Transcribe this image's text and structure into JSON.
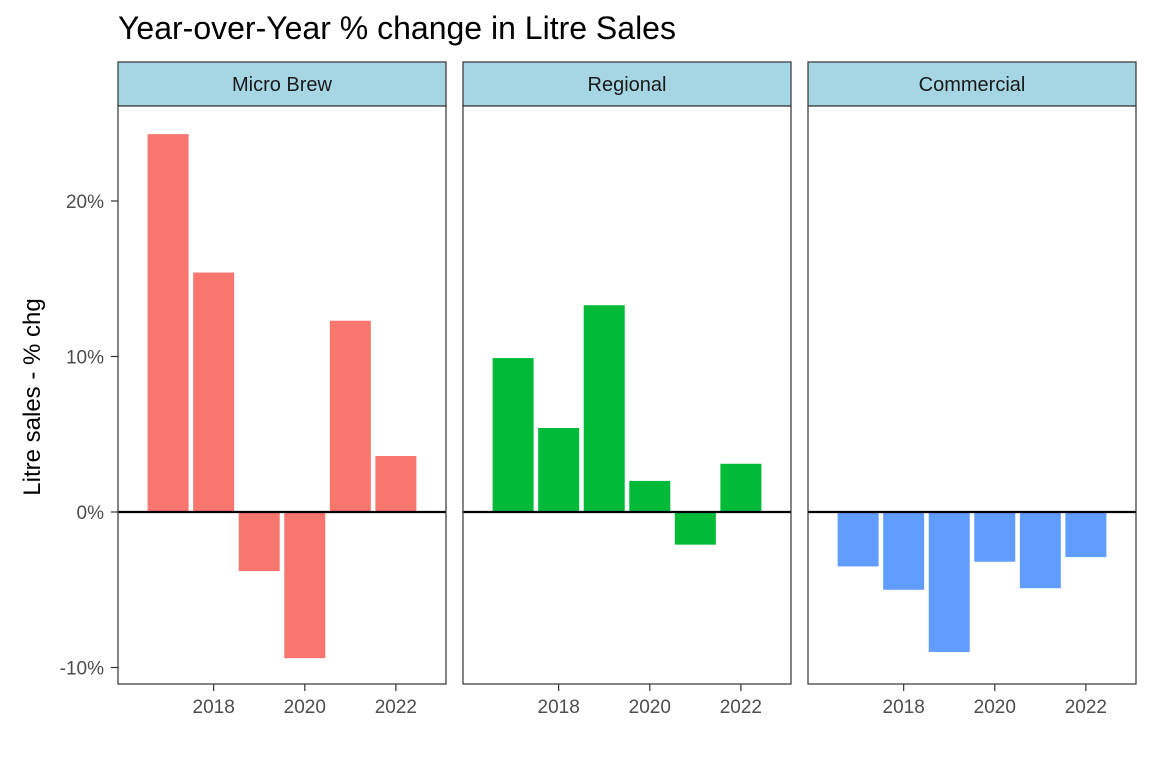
{
  "chart_data": {
    "type": "bar",
    "title": "Year-over-Year % change in Litre Sales",
    "ylabel": "Litre sales - % chg",
    "xlabel": "",
    "x": [
      2017,
      2018,
      2019,
      2020,
      2021,
      2022
    ],
    "x_ticks": [
      "2018",
      "2020",
      "2022"
    ],
    "ylim": [
      -0.106,
      0.26
    ],
    "y_ticks": [
      {
        "value": -0.1,
        "label": "-10%"
      },
      {
        "value": 0.0,
        "label": "0%"
      },
      {
        "value": 0.1,
        "label": "10%"
      },
      {
        "value": 0.2,
        "label": "20%"
      }
    ],
    "facets": [
      {
        "name": "Micro Brew",
        "color": "#F8766D",
        "values": [
          0.243,
          0.154,
          -0.038,
          -0.094,
          0.123,
          0.036
        ]
      },
      {
        "name": "Regional",
        "color": "#00BA38",
        "values": [
          0.099,
          0.054,
          0.133,
          0.02,
          -0.021,
          0.031
        ]
      },
      {
        "name": "Commercial",
        "color": "#619CFF",
        "values": [
          -0.035,
          -0.05,
          -0.09,
          -0.032,
          -0.049,
          -0.029
        ]
      }
    ],
    "zero_line": true,
    "grid": false,
    "legend": "none",
    "strip_fill": "#A6D5E4"
  }
}
